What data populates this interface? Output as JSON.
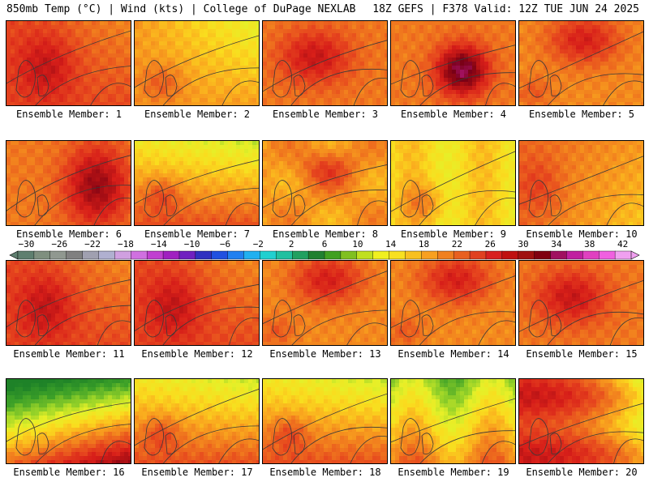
{
  "header": {
    "left": "850mb Temp (°C) | Wind (kts) | College of DuPage NEXLAB",
    "right": "18Z GEFS | F378 Valid: 12Z TUE JUN 24 2025"
  },
  "panels": [
    {
      "caption": "Ensemble Member: 1",
      "pattern": "hot-west"
    },
    {
      "caption": "Ensemble Member: 2",
      "pattern": "mild-north"
    },
    {
      "caption": "Ensemble Member: 3",
      "pattern": "hot-center"
    },
    {
      "caption": "Ensemble Member: 4",
      "pattern": "extreme-center"
    },
    {
      "caption": "Ensemble Member: 5",
      "pattern": "hot-north"
    },
    {
      "caption": "Ensemble Member: 6",
      "pattern": "hot-east"
    },
    {
      "caption": "Ensemble Member: 7",
      "pattern": "cool-north"
    },
    {
      "caption": "Ensemble Member: 8",
      "pattern": "warm-mixed"
    },
    {
      "caption": "Ensemble Member: 9",
      "pattern": "mild"
    },
    {
      "caption": "Ensemble Member: 10",
      "pattern": "warm-west"
    },
    {
      "caption": "Ensemble Member: 11",
      "pattern": "hot-west"
    },
    {
      "caption": "Ensemble Member: 12",
      "pattern": "hot-west"
    },
    {
      "caption": "Ensemble Member: 13",
      "pattern": "hot-north"
    },
    {
      "caption": "Ensemble Member: 14",
      "pattern": "hot-north"
    },
    {
      "caption": "Ensemble Member: 15",
      "pattern": "hot-center"
    },
    {
      "caption": "Ensemble Member: 16",
      "pattern": "cool-northwest"
    },
    {
      "caption": "Ensemble Member: 17",
      "pattern": "cool-north"
    },
    {
      "caption": "Ensemble Member: 18",
      "pattern": "cool-north"
    },
    {
      "caption": "Ensemble Member: 19",
      "pattern": "cool-north-mild"
    },
    {
      "caption": "Ensemble Member: 20",
      "pattern": "cool-east"
    }
  ],
  "colorbar": {
    "labels": [
      "−30",
      "−26",
      "−22",
      "−18",
      "−14",
      "−10",
      "−6",
      "−2",
      "2",
      "6",
      "10",
      "14",
      "18",
      "22",
      "26",
      "30",
      "34",
      "38",
      "42"
    ],
    "values": [
      -30,
      -26,
      -22,
      -18,
      -14,
      -10,
      -6,
      -2,
      2,
      6,
      10,
      14,
      18,
      22,
      26,
      30,
      34,
      38,
      42
    ],
    "min": -32,
    "max": 44,
    "colors": [
      "#5f7f6f",
      "#7f8f7f",
      "#909890",
      "#808080",
      "#a0a0b0",
      "#b0b0d0",
      "#d0a0e0",
      "#d070e0",
      "#c040d0",
      "#a020c0",
      "#7020c0",
      "#3030c0",
      "#2050e0",
      "#2080f0",
      "#20b0f0",
      "#20d0d0",
      "#20c0a0",
      "#20a060",
      "#208030",
      "#40a020",
      "#80c020",
      "#c0e020",
      "#f0f020",
      "#f8e020",
      "#f8c020",
      "#f8a020",
      "#f08020",
      "#e86020",
      "#e04020",
      "#d82020",
      "#c01010",
      "#a01010",
      "#800010",
      "#a01060",
      "#c020a0",
      "#e040c0",
      "#f060e0",
      "#f0a0f0"
    ]
  }
}
